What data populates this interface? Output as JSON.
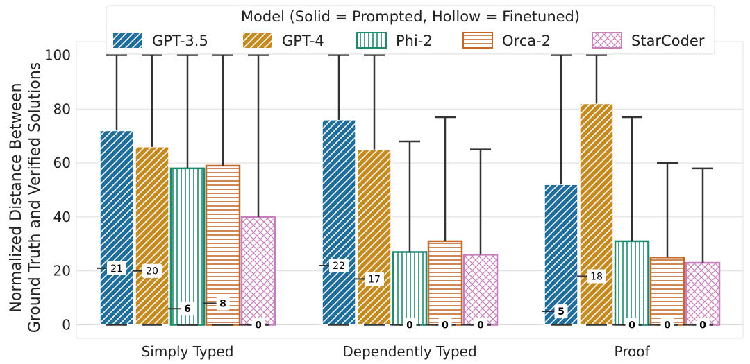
{
  "chart_data": {
    "type": "bar",
    "ylabel_lines": [
      "Normalized Distance Between",
      "Ground Truth and Verified Solutions"
    ],
    "xlabel": "",
    "ylim": [
      -5,
      105
    ],
    "yticks": [
      0,
      20,
      40,
      60,
      80,
      100
    ],
    "grid": "horizontal",
    "legend": {
      "title": "Model (Solid = Prompted, Hollow = Finetuned)",
      "placement": "top-center",
      "entries": [
        "GPT-3.5",
        "GPT-4",
        "Phi-2",
        "Orca-2",
        "StarCoder"
      ]
    },
    "categories": [
      "Simply Typed",
      "Dependently Typed",
      "Proof"
    ],
    "series": [
      {
        "name": "GPT-3.5",
        "color": "#1f6e9c",
        "style": "solid",
        "hatch": "diagonal",
        "values": [
          72,
          76,
          52
        ],
        "whisker_low": [
          0,
          0,
          0
        ],
        "whisker_high": [
          100,
          100,
          100
        ],
        "median": [
          21,
          22,
          5
        ]
      },
      {
        "name": "GPT-4",
        "color": "#c58b21",
        "style": "solid",
        "hatch": "diagonal",
        "values": [
          66,
          65,
          82
        ],
        "whisker_low": [
          0,
          0,
          0
        ],
        "whisker_high": [
          100,
          100,
          100
        ],
        "median": [
          20,
          17,
          18
        ]
      },
      {
        "name": "Phi-2",
        "color": "#1f8a6e",
        "style": "hollow",
        "hatch": "vertical",
        "values": [
          58,
          27,
          31
        ],
        "whisker_low": [
          0,
          0,
          0
        ],
        "whisker_high": [
          100,
          68,
          77
        ],
        "median": [
          6,
          0,
          0
        ]
      },
      {
        "name": "Orca-2",
        "color": "#c4692a",
        "style": "hollow",
        "hatch": "horizontal",
        "values": [
          59,
          31,
          25
        ],
        "whisker_low": [
          0,
          0,
          0
        ],
        "whisker_high": [
          100,
          77,
          60
        ],
        "median": [
          8,
          0,
          0
        ]
      },
      {
        "name": "StarCoder",
        "color": "#c77fbc",
        "style": "hollow",
        "hatch": "cross",
        "values": [
          40,
          26,
          23
        ],
        "whisker_low": [
          0,
          0,
          0
        ],
        "whisker_high": [
          100,
          65,
          58
        ],
        "median": [
          0,
          0,
          0
        ]
      }
    ]
  }
}
